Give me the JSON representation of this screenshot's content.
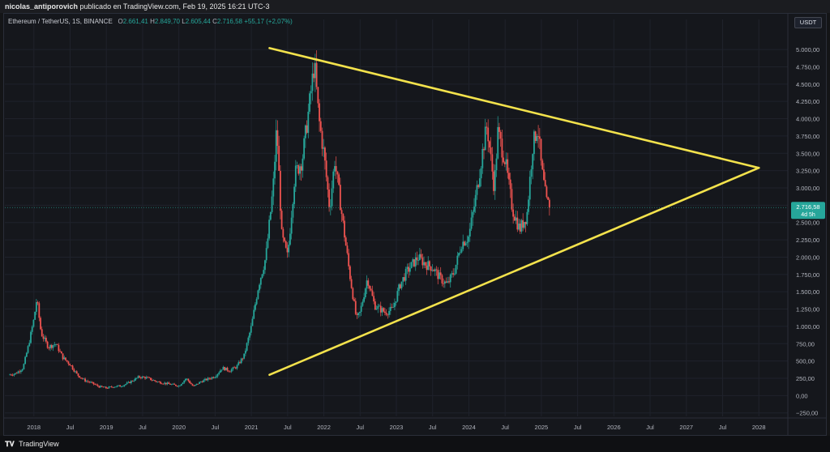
{
  "header": {
    "user": "nicolas_antiporovich",
    "published_text": "publicado en TradingView.com, Feb 19, 2025 16:21 UTC-3"
  },
  "legend": {
    "symbol": "Ethereum / TetherUS, 1S, BINANCE",
    "o_label": "O",
    "o_value": "2.661,41",
    "h_label": "H",
    "h_value": "2.849,70",
    "l_label": "L",
    "l_value": "2.605,44",
    "c_label": "C",
    "c_value": "2.716,58",
    "change": "+55,17 (+2,07%)"
  },
  "currency_button": "USDT",
  "price_tag": {
    "price": "2.716,58",
    "countdown": "4d 5h"
  },
  "footer": {
    "brand": "TradingView"
  },
  "colors": {
    "up": "#26a69a",
    "down": "#ef5350",
    "trendline": "#f3e24c",
    "background": "#15171c"
  },
  "chart_data": {
    "type": "candlestick",
    "interval": "1 week",
    "last_price": 2716.58,
    "y_axis": {
      "ticks": [
        -250,
        0,
        250,
        500,
        750,
        1000,
        1250,
        1500,
        1750,
        2000,
        2250,
        2500,
        2750,
        3000,
        3250,
        3500,
        3750,
        4000,
        4250,
        4500,
        4750,
        5000
      ],
      "tick_labels": [
        "−250,00",
        "0,00",
        "250,00",
        "500,00",
        "750,00",
        "1.000,00",
        "1.250,00",
        "1.500,00",
        "1.750,00",
        "2.000,00",
        "2.250,00",
        "2.500,00",
        "2.750,00",
        "3.000,00",
        "3.250,00",
        "3.500,00",
        "3.750,00",
        "4.000,00",
        "4.250,00",
        "4.500,00",
        "4.750,00",
        "5.000,00"
      ],
      "range": [
        -300,
        5200
      ]
    },
    "x_axis": {
      "ticks": [
        2018.0,
        2018.5,
        2019.0,
        2019.5,
        2020.0,
        2020.5,
        2021.0,
        2021.5,
        2022.0,
        2022.5,
        2023.0,
        2023.5,
        2024.0,
        2024.5,
        2025.0,
        2025.5,
        2026.0,
        2026.5,
        2027.0,
        2027.5,
        2028.0
      ],
      "tick_labels": [
        "2018",
        "Jul",
        "2019",
        "Jul",
        "2020",
        "Jul",
        "2021",
        "Jul",
        "2022",
        "Jul",
        "2023",
        "Jul",
        "2024",
        "Jul",
        "2025",
        "Jul",
        "2026",
        "Jul",
        "2027",
        "Jul",
        "2028"
      ],
      "range": [
        2017.6,
        2028.4
      ]
    },
    "price_path": [
      [
        2017.65,
        300
      ],
      [
        2017.75,
        320
      ],
      [
        2017.85,
        400
      ],
      [
        2017.92,
        700
      ],
      [
        2018.0,
        1100
      ],
      [
        2018.04,
        1400
      ],
      [
        2018.1,
        900
      ],
      [
        2018.2,
        700
      ],
      [
        2018.3,
        750
      ],
      [
        2018.4,
        550
      ],
      [
        2018.5,
        450
      ],
      [
        2018.6,
        300
      ],
      [
        2018.7,
        220
      ],
      [
        2018.8,
        180
      ],
      [
        2018.9,
        130
      ],
      [
        2019.0,
        110
      ],
      [
        2019.1,
        130
      ],
      [
        2019.2,
        140
      ],
      [
        2019.3,
        180
      ],
      [
        2019.45,
        270
      ],
      [
        2019.55,
        260
      ],
      [
        2019.7,
        200
      ],
      [
        2019.85,
        170
      ],
      [
        2020.0,
        140
      ],
      [
        2020.1,
        250
      ],
      [
        2020.2,
        130
      ],
      [
        2020.3,
        200
      ],
      [
        2020.4,
        240
      ],
      [
        2020.5,
        280
      ],
      [
        2020.6,
        400
      ],
      [
        2020.7,
        360
      ],
      [
        2020.8,
        420
      ],
      [
        2020.9,
        580
      ],
      [
        2021.0,
        1000
      ],
      [
        2021.1,
        1600
      ],
      [
        2021.2,
        2000
      ],
      [
        2021.3,
        3000
      ],
      [
        2021.35,
        3900
      ],
      [
        2021.42,
        2300
      ],
      [
        2021.5,
        2000
      ],
      [
        2021.6,
        3200
      ],
      [
        2021.7,
        3400
      ],
      [
        2021.8,
        4200
      ],
      [
        2021.87,
        4800
      ],
      [
        2021.93,
        4000
      ],
      [
        2022.0,
        3500
      ],
      [
        2022.08,
        2700
      ],
      [
        2022.15,
        3400
      ],
      [
        2022.25,
        2600
      ],
      [
        2022.35,
        1800
      ],
      [
        2022.45,
        1100
      ],
      [
        2022.5,
        1200
      ],
      [
        2022.6,
        1700
      ],
      [
        2022.7,
        1300
      ],
      [
        2022.85,
        1200
      ],
      [
        2022.95,
        1250
      ],
      [
        2023.05,
        1600
      ],
      [
        2023.15,
        1800
      ],
      [
        2023.3,
        2000
      ],
      [
        2023.4,
        1900
      ],
      [
        2023.5,
        1850
      ],
      [
        2023.6,
        1700
      ],
      [
        2023.7,
        1600
      ],
      [
        2023.8,
        1800
      ],
      [
        2023.9,
        2200
      ],
      [
        2024.0,
        2300
      ],
      [
        2024.1,
        2900
      ],
      [
        2024.2,
        3600
      ],
      [
        2024.25,
        3900
      ],
      [
        2024.35,
        3000
      ],
      [
        2024.4,
        3800
      ],
      [
        2024.5,
        3400
      ],
      [
        2024.6,
        2700
      ],
      [
        2024.7,
        2400
      ],
      [
        2024.8,
        2600
      ],
      [
        2024.88,
        3600
      ],
      [
        2024.95,
        3900
      ],
      [
        2025.0,
        3300
      ],
      [
        2025.07,
        2800
      ],
      [
        2025.13,
        2716.58
      ]
    ],
    "trendlines": [
      {
        "role": "upper",
        "points": [
          [
            2021.25,
            5020
          ],
          [
            2028.0,
            3290
          ]
        ]
      },
      {
        "role": "lower",
        "points": [
          [
            2021.25,
            300
          ],
          [
            2028.0,
            3290
          ]
        ]
      }
    ]
  }
}
